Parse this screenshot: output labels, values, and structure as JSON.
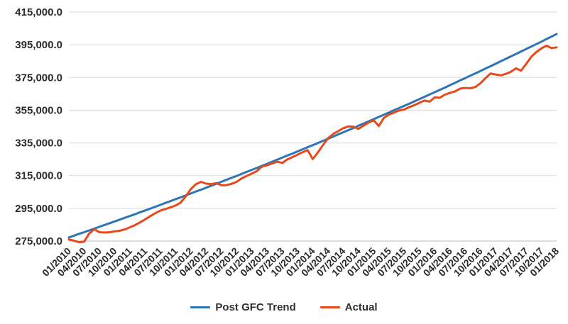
{
  "chart_data": {
    "type": "line",
    "title": "",
    "xlabel": "",
    "ylabel": "",
    "grid": true,
    "legend_position": "bottom",
    "ylim": [
      275000,
      415000
    ],
    "y_tick_step": 20000,
    "y_tick_labels": [
      "415,000.0",
      "395,000.0",
      "375,000.0",
      "355,000.0",
      "335,000.0",
      "315,000.0",
      "295,000.0",
      "275,000.0"
    ],
    "x_tick_labels": [
      "01/2010",
      "04/2010",
      "07/2010",
      "10/2010",
      "01/2011",
      "04/2011",
      "07/2011",
      "10/2011",
      "01/2012",
      "04/2012",
      "07/2012",
      "10/2012",
      "01/2013",
      "04/2013",
      "07/2013",
      "10/2013",
      "01/2014",
      "04/2014",
      "07/2014",
      "10/2014",
      "01/2015",
      "04/2015",
      "07/2015",
      "10/2015",
      "01/2016",
      "04/2016",
      "07/2016",
      "10/2016",
      "01/2017",
      "04/2017",
      "07/2017",
      "10/2017",
      "01/2018"
    ],
    "x_frequency": "monthly",
    "n_points": 97,
    "series": [
      {
        "name": "Post GFC Trend",
        "color": "#2e75b6",
        "values": [
          277200,
          278300,
          279400,
          280400,
          281500,
          282600,
          283700,
          284800,
          285900,
          287000,
          288100,
          289200,
          290300,
          291400,
          292600,
          293700,
          294800,
          296000,
          297100,
          298300,
          299400,
          300600,
          301700,
          302900,
          304100,
          305300,
          306400,
          307600,
          308800,
          310000,
          311200,
          312400,
          313600,
          314800,
          316100,
          317300,
          318500,
          319700,
          321000,
          322200,
          323500,
          324700,
          326000,
          327300,
          328500,
          329800,
          331100,
          332400,
          333600,
          334900,
          336200,
          337500,
          338800,
          340200,
          341500,
          342800,
          344100,
          345500,
          346800,
          348200,
          349500,
          350900,
          352200,
          353600,
          355000,
          356300,
          357600,
          359000,
          360400,
          361800,
          363200,
          364600,
          366000,
          367400,
          368800,
          370300,
          371700,
          373200,
          374600,
          376100,
          377500,
          379000,
          380500,
          381900,
          383400,
          384900,
          386400,
          387900,
          389400,
          390900,
          392400,
          393900,
          395400,
          396900,
          398500,
          400000,
          401600
        ]
      },
      {
        "name": "Actual",
        "color": "#e8491c",
        "values": [
          276000,
          275200,
          274300,
          274600,
          279600,
          282200,
          280400,
          280200,
          280400,
          280900,
          281300,
          282100,
          283400,
          284700,
          286400,
          288200,
          290200,
          292000,
          293600,
          294600,
          295600,
          296700,
          298500,
          302300,
          306800,
          309700,
          311200,
          310100,
          309800,
          310400,
          309100,
          309200,
          310000,
          311200,
          313300,
          314800,
          316200,
          317800,
          320500,
          321300,
          322400,
          323500,
          322800,
          324900,
          326300,
          327800,
          329300,
          330600,
          325100,
          329200,
          333600,
          337900,
          340400,
          342200,
          344000,
          345100,
          344900,
          343600,
          345600,
          347500,
          348800,
          345300,
          350300,
          352300,
          353600,
          354800,
          355400,
          356900,
          358100,
          359500,
          360900,
          360200,
          362900,
          362600,
          364500,
          365600,
          366500,
          368200,
          368600,
          368400,
          369200,
          371500,
          374600,
          377400,
          376800,
          376300,
          377200,
          378500,
          380600,
          379200,
          383300,
          387600,
          390500,
          392800,
          394400,
          393000,
          393400
        ]
      }
    ],
    "colors": {
      "gridline": "#d9d9d9",
      "axis_line": "#bfbfbf",
      "tick_label": "#2b2b2b"
    }
  },
  "legend": {
    "items": [
      "Post GFC Trend",
      "Actual"
    ]
  }
}
